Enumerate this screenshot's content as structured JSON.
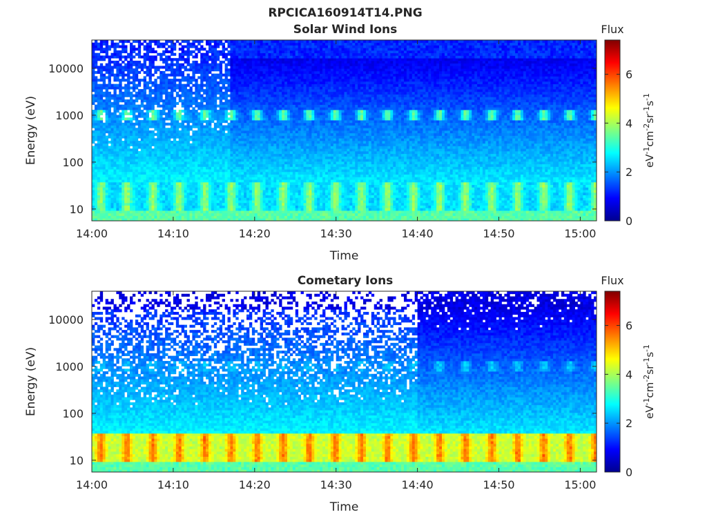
{
  "figure": {
    "title": "RPCICA160914T14.PNG"
  },
  "colormap": {
    "name": "jet",
    "stops": [
      "#00008F",
      "#0000FF",
      "#0080FF",
      "#00FFFF",
      "#80FF80",
      "#FFFF00",
      "#FF8000",
      "#FF0000",
      "#800000"
    ]
  },
  "chart_data": [
    {
      "type": "heatmap",
      "title": "Solar Wind Ions",
      "xlabel": "Time",
      "ylabel": "Energy (eV)",
      "x_ticks": [
        "14:00",
        "14:10",
        "14:20",
        "14:30",
        "14:40",
        "14:50",
        "15:00"
      ],
      "x_range": [
        "14:00",
        "15:02"
      ],
      "y_scale": "log",
      "y_ticks": [
        10,
        100,
        1000,
        10000
      ],
      "y_ticklabels": [
        "10",
        "100",
        "1000",
        "10000"
      ],
      "y_range": [
        5.6,
        40000
      ],
      "colorbar": {
        "label": "Flux",
        "unit": [
          "eV",
          "-1",
          "cm",
          "-2",
          "sr",
          "-1",
          "s",
          "-1"
        ],
        "range": [
          0,
          7.4
        ],
        "ticks": [
          0,
          2,
          4,
          6
        ]
      },
      "features": {
        "low_energy_band_eV": [
          10,
          30
        ],
        "low_energy_band_level": 3.9,
        "peak_energy_eV": 1000,
        "peak_level": 3.5,
        "high_energy_level": 1.2,
        "sparse_until": "14:17"
      }
    },
    {
      "type": "heatmap",
      "title": "Cometary Ions",
      "xlabel": "Time",
      "ylabel": "Energy (eV)",
      "x_ticks": [
        "14:00",
        "14:10",
        "14:20",
        "14:30",
        "14:40",
        "14:50",
        "15:00"
      ],
      "x_range": [
        "14:00",
        "15:02"
      ],
      "y_scale": "log",
      "y_ticks": [
        10,
        100,
        1000,
        10000
      ],
      "y_ticklabels": [
        "10",
        "100",
        "1000",
        "10000"
      ],
      "y_range": [
        5.6,
        40000
      ],
      "colorbar": {
        "label": "Flux",
        "unit": [
          "eV",
          "-1",
          "cm",
          "-2",
          "sr",
          "-1",
          "s",
          "-1"
        ],
        "range": [
          0,
          7.4
        ],
        "ticks": [
          0,
          2,
          4,
          6
        ]
      },
      "features": {
        "low_energy_band_eV": [
          10,
          30
        ],
        "low_energy_band_level": 5.6,
        "peak_energy_eV": 1000,
        "peak_level": 2.4,
        "high_energy_level": 0.7,
        "sparse_until": "14:40"
      }
    }
  ]
}
